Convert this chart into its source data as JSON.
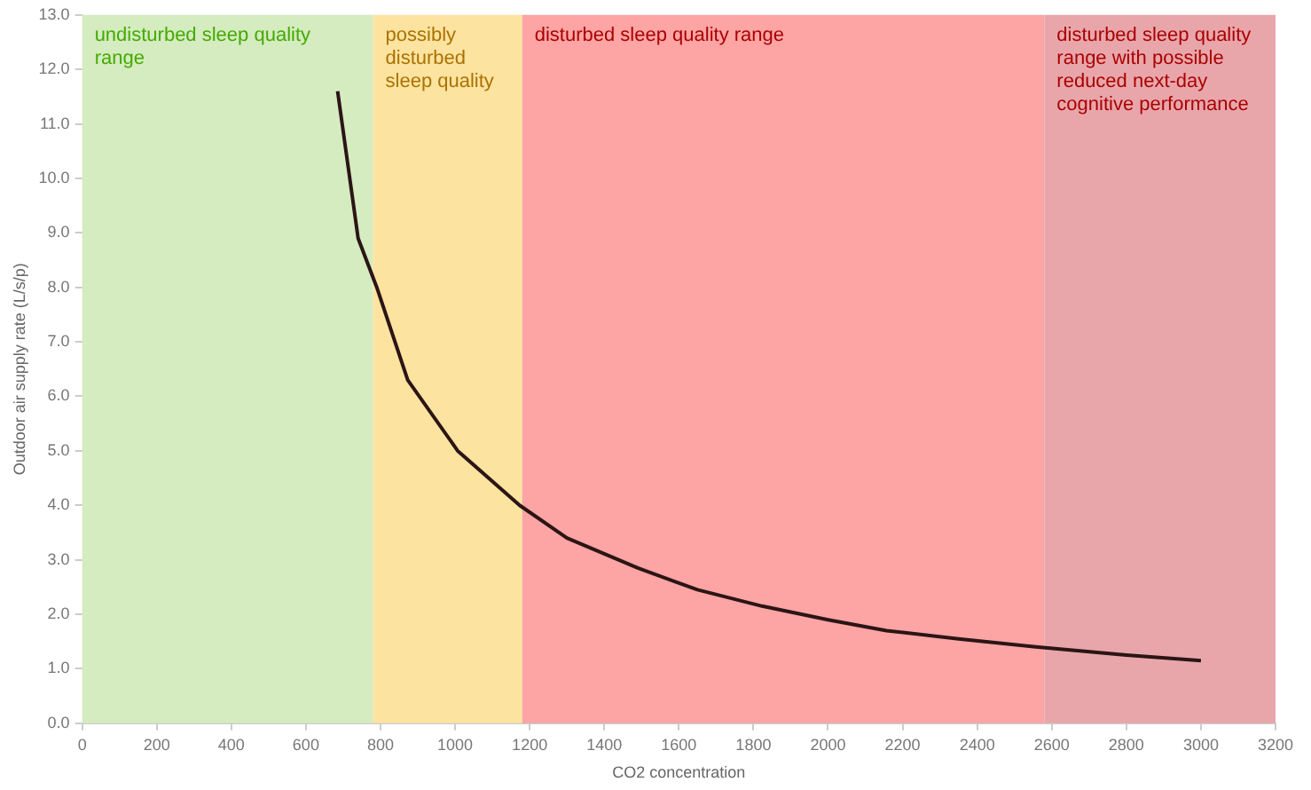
{
  "chart_data": {
    "type": "line",
    "xlabel": "CO2 concentration",
    "ylabel": "Outdoor air supply rate (L/s/p)",
    "x": [
      685,
      740,
      790,
      873,
      1007,
      1173,
      1300,
      1490,
      1650,
      1823,
      2000,
      2157,
      2350,
      2557,
      2800,
      3000
    ],
    "series": [
      {
        "color": "#2b1515",
        "values": [
          11.6,
          8.9,
          8.0,
          6.3,
          5.0,
          4.0,
          3.4,
          2.85,
          2.45,
          2.15,
          1.9,
          1.7,
          1.55,
          1.4,
          1.25,
          1.15
        ]
      }
    ],
    "xlim": [
      0,
      3200
    ],
    "xticks": [
      0,
      200,
      400,
      600,
      800,
      1000,
      1200,
      1400,
      1600,
      1800,
      2000,
      2200,
      2400,
      2600,
      2800,
      3000,
      3200
    ],
    "ylim": [
      0,
      13
    ],
    "yticks": [
      {
        "value": 0,
        "label": "0.0"
      },
      {
        "value": 1,
        "label": "1.0"
      },
      {
        "value": 2,
        "label": "2.0"
      },
      {
        "value": 3,
        "label": "3.0"
      },
      {
        "value": 4,
        "label": "4.0"
      },
      {
        "value": 5,
        "label": "5.0"
      },
      {
        "value": 6,
        "label": "6.0"
      },
      {
        "value": 7,
        "label": "7.0"
      },
      {
        "value": 8,
        "label": "8.0"
      },
      {
        "value": 9,
        "label": "9.0"
      },
      {
        "value": 10,
        "label": "10.0"
      },
      {
        "value": 11,
        "label": "11.0"
      },
      {
        "value": 12,
        "label": "12.0"
      },
      {
        "value": 13,
        "label": "13.0"
      }
    ],
    "bands": [
      {
        "axis": "x",
        "from": 0,
        "to": 780,
        "label": "undisturbed sleep quality range",
        "color": "#d5ebc0"
      },
      {
        "axis": "x",
        "from": 780,
        "to": 1180,
        "label": "possibly disturbed sleep quality",
        "color": "#fde3a0"
      },
      {
        "axis": "x",
        "from": 1180,
        "to": 2580,
        "label": "disturbed sleep quality range",
        "color": "#fda4a4"
      },
      {
        "axis": "x",
        "from": 2580,
        "to": 3200,
        "label": "disturbed sleep quality range with possible reduced next-day cognitive performance",
        "color": "#e8a6ab"
      }
    ],
    "grid": false,
    "legend": false
  }
}
